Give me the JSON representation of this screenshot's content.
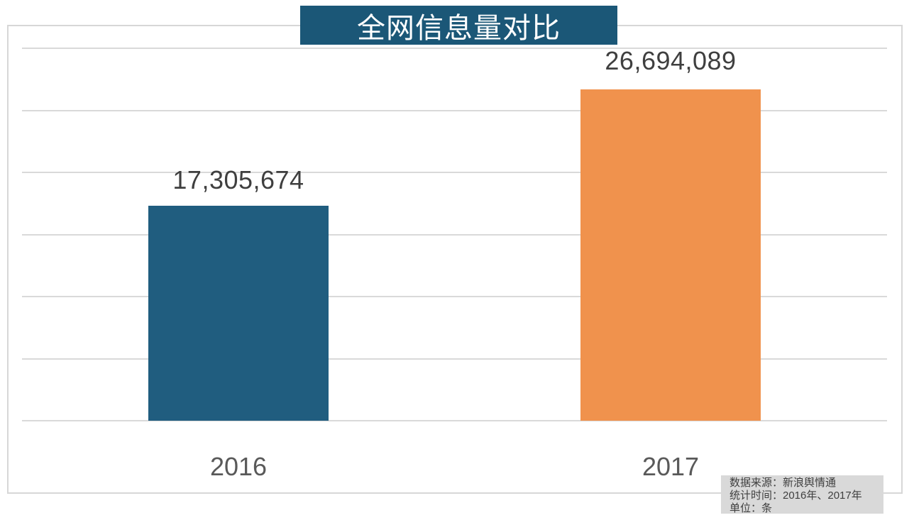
{
  "title_banner": {
    "text": "全网信息量对比"
  },
  "chart_data": {
    "type": "bar",
    "title": "全网信息量对比",
    "categories": [
      "2016",
      "2017"
    ],
    "values": [
      17305674,
      26694089
    ],
    "value_labels": [
      "17,305,674",
      "26,694,089"
    ],
    "bar_colors": [
      "#205d7f",
      "#f0924d"
    ],
    "ylim": [
      0,
      30000000
    ],
    "gridline_interval": 5000000,
    "grid": "horizontal",
    "legend_position": "none",
    "xlabel": "",
    "ylabel": ""
  },
  "source_box": {
    "lines": [
      "数据来源：新浪舆情通",
      "统计时间：2016年、2017年",
      "单位：条"
    ]
  },
  "colors": {
    "title_banner_bg": "#1b5777",
    "bar_2016": "#205d7f",
    "bar_2017": "#f0924d",
    "gridline": "#d9d9d9",
    "plot_border": "#d7d7d7",
    "source_box_bg": "#d9d9d9",
    "value_label_text": "#3f3f3f",
    "axis_label_text": "#595959",
    "title_text": "#ffffff"
  }
}
